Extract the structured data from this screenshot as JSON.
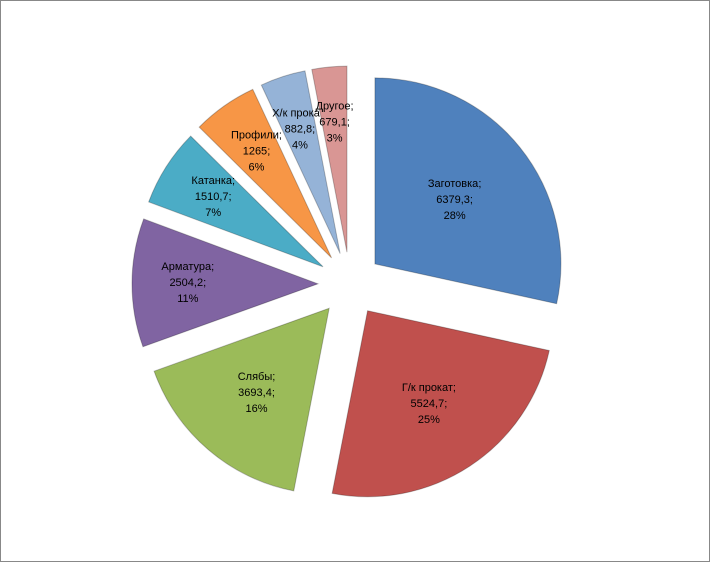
{
  "chart_data": {
    "type": "pie",
    "categories": [
      "Заготовка",
      "Г/к прокат",
      "Слябы",
      "Арматура",
      "Катанка",
      "Профили",
      "Х/к прокат",
      "Другое"
    ],
    "values": [
      6379.3,
      5524.7,
      3693.4,
      2504.2,
      1510.7,
      1265,
      882.8,
      679.1
    ],
    "value_labels": [
      "6379,3",
      "5524,7",
      "3693,4",
      "2504,2",
      "1510,7",
      "1265",
      "882,8",
      "679,1"
    ],
    "percent_labels": [
      "28%",
      "25%",
      "16%",
      "11%",
      "7%",
      "6%",
      "4%",
      "3%"
    ],
    "label_separator": ";",
    "colors": [
      "#4f81bd",
      "#c0504d",
      "#9bbb59",
      "#8064a2",
      "#4bacc6",
      "#f79646",
      "#95b3d7",
      "#d99694"
    ]
  }
}
